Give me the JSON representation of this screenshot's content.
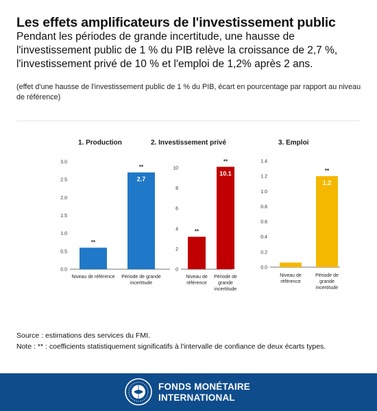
{
  "header": {
    "title": "Les effets amplificateurs de l'investissement public",
    "subtitle": "Pendant les périodes de grande incertitude, une hausse de l'investissement public de 1 % du PIB relève la croissance de 2,7 %, l'investissement privé de 10 % et l'emploi de 1,2% après 2 ans.",
    "caption": "(effet d'une hausse de l'investissement public de 1 % du PIB, écart en pourcentage par rapport au niveau de référence)"
  },
  "colors": {
    "blue": "#1f78c8",
    "red": "#c00000",
    "yellow": "#f5b800",
    "footer": "#0f4c8c"
  },
  "chart_data": [
    {
      "type": "bar",
      "title": "1. Production",
      "categories": [
        "Niveau de référence",
        "Période de grande incertitude"
      ],
      "values": [
        0.6,
        2.7
      ],
      "value_labels": [
        "",
        "2.7"
      ],
      "significance": [
        "**",
        "**"
      ],
      "ylim": [
        0,
        3.0
      ],
      "yticks": [
        "0.0",
        "0.5",
        "1.0",
        "1.5",
        "2.0",
        "2.5",
        "3.0"
      ],
      "color": "#1f78c8"
    },
    {
      "type": "bar",
      "title": "2. Investissement privé",
      "categories": [
        "Niveau de référence",
        "Période de grande incertitude"
      ],
      "values": [
        3.2,
        10.1
      ],
      "value_labels": [
        "",
        "10.1"
      ],
      "significance": [
        "**",
        "**"
      ],
      "ylim": [
        0,
        10
      ],
      "yticks": [
        "0",
        "2",
        "4",
        "6",
        "8",
        "10"
      ],
      "color": "#c00000"
    },
    {
      "type": "bar",
      "title": "3. Emploi",
      "categories": [
        "Niveau de référence",
        "Période de grande incertitude"
      ],
      "values": [
        0.06,
        1.2
      ],
      "value_labels": [
        "",
        "1.2"
      ],
      "significance": [
        "",
        "**"
      ],
      "ylim": [
        0,
        1.4
      ],
      "yticks": [
        "0.0",
        "0.2",
        "0.4",
        "0.6",
        "0.8",
        "1.0",
        "1.2",
        "1.4"
      ],
      "color": "#f5b800"
    }
  ],
  "notes": {
    "source": "Source : estimations des services du FMI.",
    "note": "Note : ** : coefficients statistiquement significatifs à l'intervalle de confiance de deux écarts types."
  },
  "footer": {
    "org_line1": "FONDS MONÉTAIRE",
    "org_line2": "INTERNATIONAL",
    "logo_icon": "imf-seal-icon"
  }
}
